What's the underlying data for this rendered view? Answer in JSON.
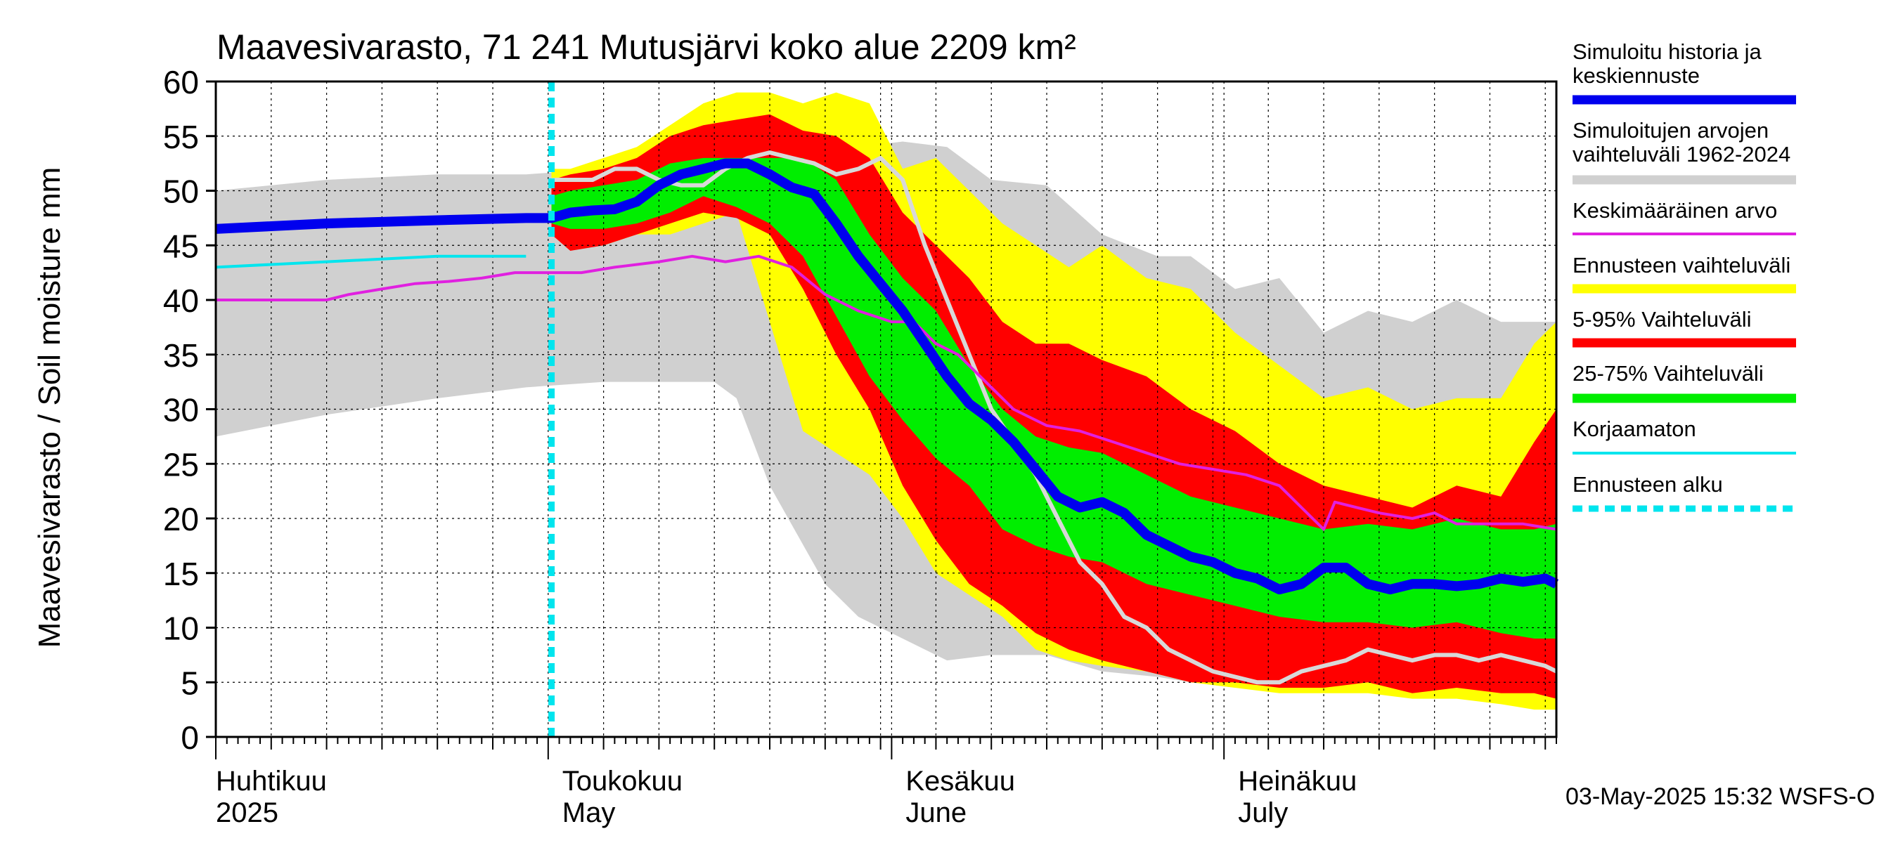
{
  "chart_data": {
    "type": "area",
    "title": "Maavesivarasto, 71 241 Mutusjärvi koko alue 2209 km²",
    "ylabel": "Maavesivarasto / Soil moisture   mm",
    "ylim": [
      0,
      60
    ],
    "yticks": [
      0,
      5,
      10,
      15,
      20,
      25,
      30,
      35,
      40,
      45,
      50,
      55,
      60
    ],
    "xlim": [
      0,
      121
    ],
    "month_labels": [
      {
        "fi": "Huhtikuu",
        "en": "2025",
        "day": 0
      },
      {
        "fi": "Toukokuu",
        "en": "May",
        "day": 30
      },
      {
        "fi": "Kesäkuu",
        "en": "June",
        "day": 61
      },
      {
        "fi": "Heinäkuu",
        "en": "July",
        "day": 91
      }
    ],
    "forecast_start_day": 30.3,
    "timestamp": "03-May-2025 15:32 WSFS-O",
    "legend": [
      {
        "label": "Simuloitu historia ja keskiennuste",
        "color": "#0000ee",
        "style": "thick"
      },
      {
        "label": "Simuloitujen arvojen vaihteluväli 1962-2024",
        "color": "#d0d0d0",
        "style": "thick"
      },
      {
        "label": "Keskimääräinen arvo",
        "color": "#e020e0",
        "style": "thin"
      },
      {
        "label": "Ennusteen vaihteluväli",
        "color": "#ffff00",
        "style": "thick"
      },
      {
        "label": "5-95% Vaihteluväli",
        "color": "#ff0000",
        "style": "thick"
      },
      {
        "label": "25-75% Vaihteluväli",
        "color": "#00ee00",
        "style": "thick"
      },
      {
        "label": "Korjaamaton",
        "color": "#00e5ee",
        "style": "thin"
      },
      {
        "label": "Ennusteen alku",
        "color": "#00e5ee",
        "style": "dotted"
      }
    ],
    "series": {
      "history_range": {
        "x": [
          0,
          10,
          20,
          28,
          35,
          45,
          47,
          50,
          55,
          58,
          62,
          66,
          70,
          75,
          80,
          85,
          88,
          92,
          96,
          100,
          104,
          108,
          112,
          116,
          121
        ],
        "lower": [
          27.5,
          29.5,
          31,
          32,
          32.5,
          32.5,
          31,
          23,
          14,
          11,
          9,
          7,
          7.5,
          7.5,
          6,
          5.5,
          5,
          4.5,
          4.5,
          4.5,
          4.5,
          4.5,
          4.5,
          4.5,
          4.5
        ],
        "upper": [
          50,
          51,
          51.5,
          51.5,
          52,
          54,
          56,
          57,
          56,
          54,
          54.5,
          54,
          51,
          50.5,
          46,
          44,
          44,
          41,
          42,
          37,
          39,
          38,
          40,
          38,
          38
        ]
      },
      "forecast_range": {
        "x": [
          30.3,
          32,
          35,
          38,
          41,
          44,
          47,
          50,
          53,
          56,
          59,
          62,
          65,
          68,
          71,
          74,
          77,
          80,
          84,
          88,
          92,
          96,
          100,
          104,
          108,
          112,
          116,
          119,
          121
        ],
        "lower": [
          46,
          45,
          45,
          46,
          46,
          47,
          48,
          38,
          28,
          26,
          24,
          20,
          15,
          13,
          11,
          8,
          7,
          6.5,
          6,
          5,
          4.5,
          4,
          4,
          4,
          3.5,
          3.5,
          3,
          2.5,
          2.5
        ],
        "upper": [
          52,
          52,
          53,
          54,
          56,
          58,
          59,
          59,
          58,
          59,
          58,
          52,
          53,
          50,
          47,
          45,
          43,
          45,
          42,
          41,
          37,
          34,
          31,
          32,
          30,
          31,
          31,
          36,
          38
        ]
      },
      "p5_95": {
        "x": [
          30.3,
          32,
          35,
          38,
          41,
          44,
          47,
          50,
          53,
          56,
          59,
          62,
          65,
          68,
          71,
          74,
          77,
          80,
          84,
          88,
          92,
          96,
          100,
          104,
          108,
          112,
          116,
          119,
          121
        ],
        "lower": [
          46,
          44.5,
          45,
          46,
          47,
          48,
          47.5,
          46,
          41,
          35,
          30,
          23,
          18,
          14,
          12,
          9.5,
          8,
          7,
          6,
          5,
          5,
          4.5,
          4.5,
          5,
          4,
          4.5,
          4,
          4,
          3.5
        ],
        "upper": [
          51,
          51.5,
          52,
          53,
          55,
          56,
          56.5,
          57,
          55.5,
          55,
          53,
          48,
          45,
          42,
          38,
          36,
          36,
          34.5,
          33,
          30,
          28,
          25,
          23,
          22,
          21,
          23,
          22,
          27,
          30
        ]
      },
      "p25_75": {
        "x": [
          30.3,
          32,
          35,
          38,
          41,
          44,
          47,
          50,
          53,
          56,
          59,
          62,
          65,
          68,
          71,
          74,
          77,
          80,
          84,
          88,
          92,
          96,
          100,
          104,
          108,
          112,
          116,
          119,
          121
        ],
        "lower": [
          47,
          46.5,
          46.5,
          47,
          48,
          49.5,
          48.5,
          47,
          44,
          38.5,
          33,
          29,
          25.5,
          23,
          19,
          17.5,
          16.5,
          16,
          14,
          13,
          12,
          11,
          10.5,
          10.5,
          10,
          10.5,
          9.5,
          9,
          9
        ],
        "upper": [
          49.5,
          50,
          50.5,
          51,
          52.5,
          53,
          53,
          53,
          53,
          51,
          46,
          42,
          39,
          34,
          30,
          27.5,
          26.5,
          26,
          24,
          22,
          21,
          20,
          19,
          19.5,
          19,
          20,
          19,
          19,
          19.5
        ]
      },
      "median": {
        "x": [
          0,
          10,
          20,
          28,
          30.3,
          32,
          34,
          36,
          38,
          40,
          42,
          44,
          46,
          48,
          50,
          52,
          54,
          56,
          58,
          60,
          62,
          64,
          66,
          68,
          70,
          72,
          74,
          76,
          78,
          80,
          82,
          84,
          86,
          88,
          90,
          92,
          94,
          96,
          98,
          100,
          101,
          102,
          104,
          106,
          108,
          110,
          112,
          114,
          116,
          118,
          120,
          121
        ],
        "y": [
          46.5,
          47,
          47.3,
          47.5,
          47.5,
          48,
          48.2,
          48.3,
          49,
          50.5,
          51.5,
          52,
          52.5,
          52.5,
          51.5,
          50.3,
          49.7,
          47,
          44,
          41.5,
          39,
          36,
          33,
          30.5,
          29,
          27,
          24.5,
          22,
          21,
          21.5,
          20.5,
          18.5,
          17.5,
          16.5,
          16,
          15,
          14.5,
          13.5,
          14,
          15.5,
          15.5,
          15.5,
          14,
          13.5,
          14,
          14,
          13.8,
          14,
          14.5,
          14.2,
          14.5,
          14
        ]
      },
      "median_sim": {
        "x": [
          30.3,
          32,
          34,
          36,
          38,
          40,
          42,
          44,
          46,
          48,
          50,
          52,
          54,
          56,
          58,
          60,
          62,
          64,
          66,
          68,
          70,
          72,
          74,
          76,
          78,
          80,
          82,
          84,
          86,
          88,
          90,
          92,
          94,
          96,
          98,
          100,
          102,
          104,
          106,
          108,
          110,
          112,
          114,
          116,
          118,
          120,
          121
        ],
        "y": [
          51,
          51,
          51,
          52,
          52,
          51,
          50.5,
          50.5,
          52,
          53,
          53.5,
          53,
          52.5,
          51.5,
          52,
          53,
          51,
          45,
          40,
          35,
          30,
          27,
          24,
          20,
          16,
          14,
          11,
          10,
          8,
          7,
          6,
          5.5,
          5,
          5,
          6,
          6.5,
          7,
          8,
          7.5,
          7,
          7.5,
          7.5,
          7,
          7.5,
          7,
          6.5,
          6
        ]
      },
      "mean": {
        "x": [
          0,
          5,
          10,
          12,
          15,
          18,
          21,
          24,
          27,
          30,
          33,
          36,
          40,
          43,
          46,
          49,
          52,
          55,
          58,
          61,
          63,
          65,
          67,
          70,
          72,
          75,
          78,
          81,
          84,
          87,
          90,
          93,
          96,
          98,
          100,
          101,
          103,
          105,
          108,
          110,
          112,
          115,
          118,
          121
        ],
        "y": [
          40,
          40,
          40,
          40.5,
          41,
          41.5,
          41.7,
          42,
          42.5,
          42.5,
          42.5,
          43,
          43.5,
          44,
          43.5,
          44,
          43,
          40.5,
          39,
          38,
          38,
          36,
          35,
          32,
          30,
          28.5,
          28,
          27,
          26,
          25,
          24.5,
          24,
          23,
          21,
          19,
          21.5,
          21,
          20.5,
          20,
          20.5,
          19.5,
          19.5,
          19.5,
          19
        ]
      },
      "uncorrected": {
        "x": [
          0,
          10,
          20,
          28
        ],
        "y": [
          43,
          43.5,
          44,
          44
        ]
      }
    }
  }
}
